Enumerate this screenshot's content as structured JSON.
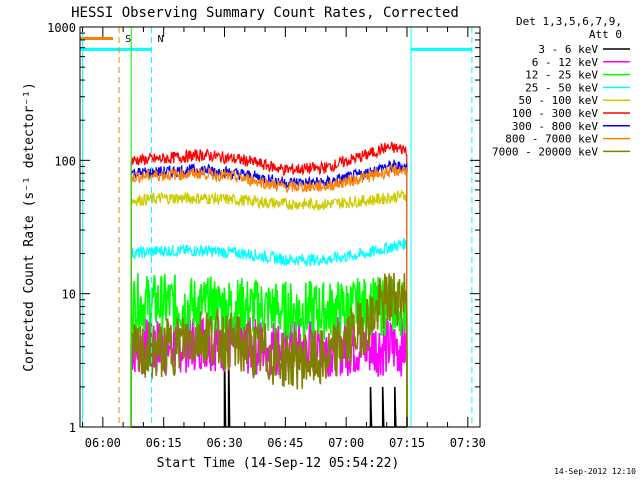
{
  "chart_data": {
    "type": "line",
    "title": "HESSI Observing Summary Count Rates, Corrected",
    "xlabel": "Start Time (14-Sep-12 05:54:22)",
    "ylabel": "Corrected Count Rate (s⁻¹ detector⁻¹)",
    "yscale": "log",
    "ylim": [
      1,
      1000
    ],
    "xlim": [
      "05:54:22",
      "07:33:00"
    ],
    "x_ticks": [
      "06:00",
      "06:15",
      "06:30",
      "06:45",
      "07:00",
      "07:15",
      "07:30"
    ],
    "y_ticks": [
      "1",
      "10",
      "100",
      "1000"
    ],
    "footer": "14-Sep-2012 12:10",
    "legend": {
      "header_lines": [
        "Det 1,3,5,6,7,9,",
        "Att 0"
      ],
      "placement": "right"
    },
    "markers": [
      {
        "label": "S",
        "time": "06:04",
        "style": "dashed",
        "color": "#ff8000"
      },
      {
        "label": "N",
        "time": "06:12",
        "style": "dashed",
        "color": "#00ffff"
      }
    ],
    "flags": {
      "saa_bar_color": "#00ffff",
      "saa_bar_segments": [
        [
          "05:54:22",
          "06:12"
        ],
        [
          "07:16",
          "07:31"
        ]
      ],
      "saa_level": 680,
      "s_bar_color": "#ff8000",
      "s_bar_segment": [
        "05:54:22",
        "06:04"
      ],
      "s_level": 820,
      "boundaries_cyan": [
        "06:12",
        "07:16",
        "07:31"
      ]
    },
    "series": [
      {
        "name": "3 - 6 keV",
        "color": "#000000",
        "x": [
          "06:07",
          "06:29",
          "06:30",
          "06:31",
          "06:32",
          "07:06",
          "07:09",
          "07:12",
          "07:15"
        ],
        "values": [
          1,
          1,
          3.6,
          4,
          1,
          2,
          2,
          2,
          1
        ]
      },
      {
        "name": "6 - 12 keV",
        "color": "#ff00ff",
        "x": [
          "06:07",
          "06:15",
          "06:25",
          "06:35",
          "06:45",
          "06:55",
          "07:05",
          "07:15"
        ],
        "values": [
          4,
          4,
          4.5,
          4,
          4,
          4,
          4,
          4
        ]
      },
      {
        "name": "12 - 25 keV",
        "color": "#00ff00",
        "x": [
          "06:07",
          "06:15",
          "06:25",
          "06:35",
          "06:45",
          "06:55",
          "07:05",
          "07:10",
          "07:15"
        ],
        "values": [
          8.5,
          8.5,
          8,
          8,
          7.5,
          7.5,
          8,
          8,
          8
        ]
      },
      {
        "name": "25 - 50 keV",
        "color": "#00ffff",
        "x": [
          "06:07",
          "06:15",
          "06:25",
          "06:35",
          "06:45",
          "06:55",
          "07:05",
          "07:10",
          "07:15"
        ],
        "values": [
          20,
          21,
          21,
          20,
          18,
          18,
          20,
          22,
          24
        ]
      },
      {
        "name": "50 - 100 keV",
        "color": "#cccc00",
        "x": [
          "06:07",
          "06:15",
          "06:25",
          "06:35",
          "06:45",
          "06:55",
          "07:05",
          "07:10",
          "07:15"
        ],
        "values": [
          50,
          52,
          52,
          50,
          47,
          47,
          50,
          52,
          55
        ]
      },
      {
        "name": "100 - 300 keV",
        "color": "#ff0000",
        "x": [
          "06:07",
          "06:15",
          "06:25",
          "06:35",
          "06:45",
          "06:55",
          "07:05",
          "07:10",
          "07:15"
        ],
        "values": [
          100,
          103,
          110,
          100,
          85,
          88,
          110,
          125,
          120
        ]
      },
      {
        "name": "300 - 800 keV",
        "color": "#0000ff",
        "x": [
          "06:07",
          "06:15",
          "06:25",
          "06:35",
          "06:45",
          "06:55",
          "07:05",
          "07:10",
          "07:15"
        ],
        "values": [
          80,
          82,
          85,
          78,
          68,
          68,
          80,
          90,
          90
        ]
      },
      {
        "name": "800 - 7000 keV",
        "color": "#ff8000",
        "x": [
          "06:07",
          "06:15",
          "06:25",
          "06:35",
          "06:45",
          "06:55",
          "07:05",
          "07:10",
          "07:15"
        ],
        "values": [
          75,
          78,
          80,
          73,
          63,
          64,
          75,
          82,
          85
        ]
      },
      {
        "name": "7000 - 20000 keV",
        "color": "#808000",
        "x": [
          "06:07",
          "06:15",
          "06:25",
          "06:35",
          "06:45",
          "06:55",
          "07:05",
          "07:10",
          "07:15"
        ],
        "values": [
          3.5,
          3.8,
          5,
          4,
          3.2,
          3.2,
          6,
          9,
          10
        ]
      }
    ]
  }
}
